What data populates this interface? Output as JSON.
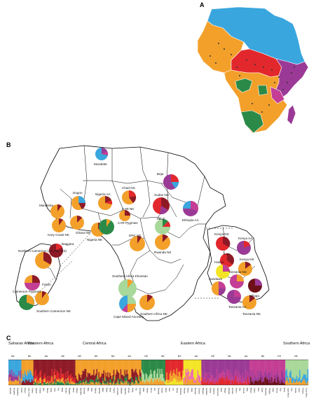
{
  "panels": {
    "a": "A",
    "b": "B",
    "c": "C"
  },
  "colors": {
    "blue": "#3aa6de",
    "orange": "#f3a02b",
    "red": "#e2282c",
    "purple": "#9b3a96",
    "green": "#2b8a47",
    "magenta": "#c33e94",
    "darkred": "#8e1a26",
    "yellow": "#f3e526",
    "lightgreen": "#a8d89a",
    "pink": "#ee6fb0",
    "maroon": "#6e1018"
  },
  "map_b_labels": [
    {
      "id": "mozabite",
      "text": "Mozabite"
    },
    {
      "id": "dogon",
      "text": "Dogon"
    },
    {
      "id": "mandinka",
      "text": "Mandinka"
    },
    {
      "id": "nigeria_aa",
      "text": "Nigeria AA"
    },
    {
      "id": "chad_ns",
      "text": "Chad NS"
    },
    {
      "id": "beja",
      "text": "Beja"
    },
    {
      "id": "sudan_ns",
      "text": "Sudan NS"
    },
    {
      "id": "car_nk",
      "text": "CAR NK"
    },
    {
      "id": "ivory_coast_nk",
      "text": "Ivory Coast NK"
    },
    {
      "id": "ghana_nk",
      "text": "Ghana NK"
    },
    {
      "id": "nigeria_nk",
      "text": "Nigeria NK"
    },
    {
      "id": "car_pygmies",
      "text": "CAR Pygmies"
    },
    {
      "id": "mbuti",
      "text": "Mbuti"
    },
    {
      "id": "ethiopia_aa",
      "text": "Ethiopia AA"
    },
    {
      "id": "northern_cameroon",
      "text": "Northern Cameroon (AA, NK, NS)"
    },
    {
      "id": "baggara",
      "text": "Baggara"
    },
    {
      "id": "drc_nk",
      "text": "DRC NK"
    },
    {
      "id": "rwanda_nk",
      "text": "Rwanda NK"
    },
    {
      "id": "fulani",
      "text": "Fulani"
    },
    {
      "id": "cameroon_pygmies",
      "text": "Cameroon Pygmies"
    },
    {
      "id": "southern_cameroon_nk",
      "text": "Southern Cameroon NK"
    },
    {
      "id": "southern_africa_khoesan",
      "text": "Southern Africa Khoesan"
    },
    {
      "id": "cape_mixed",
      "text": "Cape Mixed Ancestry"
    },
    {
      "id": "southern_africa_nk",
      "text": "Southern Africa NK"
    },
    {
      "id": "kenya_ns",
      "text": "Kenya NS"
    },
    {
      "id": "kenya_aa",
      "text": "Kenya AA"
    },
    {
      "id": "luo",
      "text": "Luo"
    },
    {
      "id": "kenya_nk",
      "text": "Kenya NK"
    },
    {
      "id": "hadza",
      "text": "Hadza"
    },
    {
      "id": "tanzania_ns",
      "text": "Tanzania NS"
    },
    {
      "id": "sandawe",
      "text": "Sandawe"
    },
    {
      "id": "mbugu",
      "text": "Mbugu"
    },
    {
      "id": "tanzania_aa",
      "text": "Tanzania AA"
    },
    {
      "id": "tanzania_nk",
      "text": "Tanzania NK"
    }
  ],
  "structure_plot": {
    "regions": [
      {
        "id": "saharan",
        "text": "Saharan Africa"
      },
      {
        "id": "western",
        "text": "Western Africa"
      },
      {
        "id": "central",
        "text": "Central Africa"
      },
      {
        "id": "eastern",
        "text": "Eastern Africa"
      },
      {
        "id": "southern",
        "text": "Southern Africa"
      }
    ],
    "groups": [
      "NK",
      "NK",
      "AA",
      "NK",
      "NS",
      "NK",
      "NS",
      "AA",
      "NS",
      "NK",
      "NS",
      "AA",
      "NS",
      "NK",
      "AA",
      "NK",
      "KS",
      "NK"
    ],
    "populations": [
      "Bedouin",
      "Mozabite",
      "Mandinka",
      "Fulani",
      "Dogon",
      "Ivory Coast",
      "Ghana",
      "Nigeria",
      "Yoruba",
      "Igbo",
      "Hausa",
      "Chad",
      "Sara",
      "Fali",
      "Daba",
      "Kotoko",
      "Baggara",
      "Mbum",
      "Gbaya",
      "Bamileke",
      "Ewondo",
      "Bulu",
      "Tikar",
      "Bakola",
      "Bedzan",
      "Baka",
      "Biaka",
      "Mbuti",
      "Pygmy",
      "Lemande",
      "Bakaka",
      "Ngumba",
      "Kongo",
      "Mada",
      "Tali",
      "Podokwo",
      "Mafa",
      "Nande",
      "Hema",
      "Alur",
      "Rwanda",
      "Sudan",
      "Dinka",
      "Nuer",
      "Luo",
      "Kenya",
      "Samburu",
      "Massai",
      "Datog",
      "Iraqw",
      "Burunge",
      "Gorowa",
      "Mbugwe",
      "Sandawe",
      "Hadza",
      "Sukuma",
      "Nyamwezi",
      "Hehe",
      "Mbugu",
      "Ethiopia",
      "Amhara",
      "Oromo",
      "Afar",
      "Somali",
      "Beja",
      "Kikuyu",
      "Luhya",
      "Pare",
      "Zigua",
      "Shambaa",
      "Chagga",
      "Iraqw",
      "Xhosa",
      "!Xun",
      "Khwe",
      "Cape Mixed",
      "Zulu",
      "Venda",
      "Sotho",
      "Tswana",
      "South Africa"
    ]
  }
}
